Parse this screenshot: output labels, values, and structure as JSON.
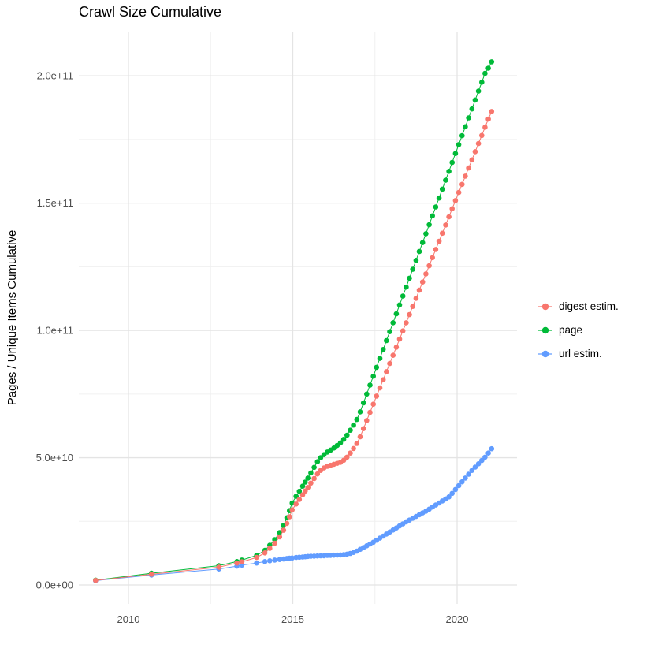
{
  "title": "Crawl Size Cumulative",
  "y_axis_label": "Pages / Unique Items Cumulative",
  "x_ticks": [
    {
      "value": 2010,
      "label": "2010"
    },
    {
      "value": 2015,
      "label": "2015"
    },
    {
      "value": 2020,
      "label": "2020"
    }
  ],
  "y_ticks": [
    {
      "value_e9": 0,
      "label": "0.0e+00"
    },
    {
      "value_e9": 50,
      "label": "5.0e+10"
    },
    {
      "value_e9": 100,
      "label": "1.0e+11"
    },
    {
      "value_e9": 150,
      "label": "1.5e+11"
    },
    {
      "value_e9": 200,
      "label": "2.0e+11"
    }
  ],
  "legend": [
    {
      "name": "digest estim.",
      "color": "#F8766D"
    },
    {
      "name": "page",
      "color": "#00BA38"
    },
    {
      "name": "url estim.",
      "color": "#619CFF"
    }
  ],
  "grid": {
    "major_color": "#e4e4e4",
    "minor_color": "#f0f0f0",
    "background": "#ffffff"
  },
  "chart_data": {
    "type": "scatter",
    "title": "Crawl Size Cumulative",
    "xlabel": "",
    "ylabel": "Pages / Unique Items Cumulative",
    "legend_position": "right",
    "grid": "on",
    "x_range": [
      2008.5,
      2021.8
    ],
    "y_range": [
      0,
      217000000000.0
    ],
    "units_note": "y values of points are in units of 1e9 (billions of pages/items), x values are decimal years",
    "series": [
      {
        "name": "digest estim.",
        "color": "#F8766D",
        "points": [
          [
            2009.0,
            1.8
          ],
          [
            2010.7,
            4.2
          ],
          [
            2012.75,
            7.0
          ],
          [
            2013.3,
            8.6
          ],
          [
            2013.45,
            9.1
          ],
          [
            2013.9,
            10.8
          ],
          [
            2014.15,
            12.6
          ],
          [
            2014.3,
            14.4
          ],
          [
            2014.45,
            16.4
          ],
          [
            2014.6,
            18.9
          ],
          [
            2014.72,
            21.5
          ],
          [
            2014.82,
            24.2
          ],
          [
            2014.9,
            26.8
          ],
          [
            2014.98,
            29.5
          ],
          [
            2015.1,
            31.8
          ],
          [
            2015.2,
            33.6
          ],
          [
            2015.3,
            35.4
          ],
          [
            2015.38,
            36.9
          ],
          [
            2015.46,
            38.3
          ],
          [
            2015.55,
            40.0
          ],
          [
            2015.65,
            41.8
          ],
          [
            2015.75,
            43.6
          ],
          [
            2015.85,
            45.0
          ],
          [
            2015.95,
            46.0
          ],
          [
            2016.05,
            46.6
          ],
          [
            2016.15,
            47.0
          ],
          [
            2016.25,
            47.4
          ],
          [
            2016.35,
            47.8
          ],
          [
            2016.45,
            48.2
          ],
          [
            2016.55,
            49.0
          ],
          [
            2016.65,
            50.2
          ],
          [
            2016.75,
            51.8
          ],
          [
            2016.85,
            53.6
          ],
          [
            2016.95,
            55.6
          ],
          [
            2017.05,
            58.2
          ],
          [
            2017.15,
            61.4
          ],
          [
            2017.25,
            64.6
          ],
          [
            2017.35,
            67.8
          ],
          [
            2017.45,
            71.0
          ],
          [
            2017.55,
            74.2
          ],
          [
            2017.65,
            77.4
          ],
          [
            2017.75,
            80.6
          ],
          [
            2017.85,
            83.8
          ],
          [
            2017.95,
            87.0
          ],
          [
            2018.05,
            90.2
          ],
          [
            2018.15,
            93.4
          ],
          [
            2018.25,
            96.6
          ],
          [
            2018.35,
            99.8
          ],
          [
            2018.45,
            103.0
          ],
          [
            2018.55,
            106.2
          ],
          [
            2018.65,
            109.4
          ],
          [
            2018.75,
            112.6
          ],
          [
            2018.85,
            115.8
          ],
          [
            2018.95,
            119.0
          ],
          [
            2019.05,
            122.2
          ],
          [
            2019.15,
            125.4
          ],
          [
            2019.25,
            128.6
          ],
          [
            2019.35,
            131.8
          ],
          [
            2019.45,
            135.0
          ],
          [
            2019.55,
            138.2
          ],
          [
            2019.65,
            141.4
          ],
          [
            2019.75,
            144.6
          ],
          [
            2019.85,
            147.8
          ],
          [
            2019.95,
            151.0
          ],
          [
            2020.05,
            154.2
          ],
          [
            2020.15,
            157.4
          ],
          [
            2020.25,
            160.6
          ],
          [
            2020.35,
            163.8
          ],
          [
            2020.45,
            167.0
          ],
          [
            2020.55,
            170.2
          ],
          [
            2020.65,
            173.4
          ],
          [
            2020.75,
            176.6
          ],
          [
            2020.85,
            179.8
          ],
          [
            2020.95,
            183.0
          ],
          [
            2021.05,
            186.0
          ]
        ]
      },
      {
        "name": "page",
        "color": "#00BA38",
        "points": [
          [
            2009.0,
            1.9
          ],
          [
            2010.7,
            4.6
          ],
          [
            2012.75,
            7.6
          ],
          [
            2013.3,
            9.2
          ],
          [
            2013.45,
            9.8
          ],
          [
            2013.9,
            11.6
          ],
          [
            2014.15,
            13.6
          ],
          [
            2014.3,
            15.6
          ],
          [
            2014.45,
            17.8
          ],
          [
            2014.6,
            20.6
          ],
          [
            2014.72,
            23.4
          ],
          [
            2014.82,
            26.4
          ],
          [
            2014.9,
            29.2
          ],
          [
            2014.98,
            32.2
          ],
          [
            2015.1,
            34.8
          ],
          [
            2015.2,
            36.8
          ],
          [
            2015.3,
            38.8
          ],
          [
            2015.38,
            40.4
          ],
          [
            2015.46,
            42.0
          ],
          [
            2015.55,
            44.0
          ],
          [
            2015.65,
            46.2
          ],
          [
            2015.75,
            48.4
          ],
          [
            2015.85,
            50.0
          ],
          [
            2015.95,
            51.2
          ],
          [
            2016.05,
            52.2
          ],
          [
            2016.15,
            53.0
          ],
          [
            2016.25,
            53.8
          ],
          [
            2016.35,
            54.8
          ],
          [
            2016.45,
            55.8
          ],
          [
            2016.55,
            57.2
          ],
          [
            2016.65,
            58.8
          ],
          [
            2016.75,
            60.8
          ],
          [
            2016.85,
            62.8
          ],
          [
            2016.95,
            65.0
          ],
          [
            2017.05,
            68.0
          ],
          [
            2017.15,
            71.5
          ],
          [
            2017.25,
            75.0
          ],
          [
            2017.35,
            78.5
          ],
          [
            2017.45,
            82.0
          ],
          [
            2017.55,
            85.5
          ],
          [
            2017.65,
            89.0
          ],
          [
            2017.75,
            92.5
          ],
          [
            2017.85,
            96.0
          ],
          [
            2017.95,
            99.5
          ],
          [
            2018.05,
            103.0
          ],
          [
            2018.15,
            106.5
          ],
          [
            2018.25,
            110.0
          ],
          [
            2018.35,
            113.5
          ],
          [
            2018.45,
            117.0
          ],
          [
            2018.55,
            120.5
          ],
          [
            2018.65,
            124.0
          ],
          [
            2018.75,
            127.5
          ],
          [
            2018.85,
            131.0
          ],
          [
            2018.95,
            134.5
          ],
          [
            2019.05,
            138.0
          ],
          [
            2019.15,
            141.5
          ],
          [
            2019.25,
            145.0
          ],
          [
            2019.35,
            148.5
          ],
          [
            2019.45,
            152.0
          ],
          [
            2019.55,
            155.5
          ],
          [
            2019.65,
            159.0
          ],
          [
            2019.75,
            162.5
          ],
          [
            2019.85,
            166.0
          ],
          [
            2019.95,
            169.5
          ],
          [
            2020.05,
            173.0
          ],
          [
            2020.15,
            176.5
          ],
          [
            2020.25,
            180.0
          ],
          [
            2020.35,
            183.5
          ],
          [
            2020.45,
            187.0
          ],
          [
            2020.55,
            190.5
          ],
          [
            2020.65,
            194.0
          ],
          [
            2020.75,
            197.5
          ],
          [
            2020.85,
            201.0
          ],
          [
            2020.95,
            203.0
          ],
          [
            2021.05,
            205.5
          ]
        ]
      },
      {
        "name": "url estim.",
        "color": "#619CFF",
        "points": [
          [
            2009.0,
            1.7
          ],
          [
            2010.7,
            3.9
          ],
          [
            2012.75,
            6.3
          ],
          [
            2013.3,
            7.4
          ],
          [
            2013.45,
            7.8
          ],
          [
            2013.9,
            8.6
          ],
          [
            2014.15,
            9.2
          ],
          [
            2014.3,
            9.5
          ],
          [
            2014.45,
            9.8
          ],
          [
            2014.6,
            10.0
          ],
          [
            2014.72,
            10.2
          ],
          [
            2014.82,
            10.4
          ],
          [
            2014.9,
            10.5
          ],
          [
            2014.98,
            10.6
          ],
          [
            2015.1,
            10.8
          ],
          [
            2015.2,
            10.9
          ],
          [
            2015.3,
            11.0
          ],
          [
            2015.38,
            11.1
          ],
          [
            2015.46,
            11.2
          ],
          [
            2015.55,
            11.3
          ],
          [
            2015.65,
            11.35
          ],
          [
            2015.75,
            11.4
          ],
          [
            2015.85,
            11.45
          ],
          [
            2015.95,
            11.5
          ],
          [
            2016.05,
            11.6
          ],
          [
            2016.15,
            11.65
          ],
          [
            2016.25,
            11.7
          ],
          [
            2016.35,
            11.75
          ],
          [
            2016.45,
            11.8
          ],
          [
            2016.55,
            11.9
          ],
          [
            2016.65,
            12.1
          ],
          [
            2016.75,
            12.4
          ],
          [
            2016.85,
            12.8
          ],
          [
            2016.95,
            13.3
          ],
          [
            2017.05,
            14.0
          ],
          [
            2017.15,
            14.7
          ],
          [
            2017.25,
            15.4
          ],
          [
            2017.35,
            16.1
          ],
          [
            2017.45,
            16.8
          ],
          [
            2017.55,
            17.6
          ],
          [
            2017.65,
            18.4
          ],
          [
            2017.75,
            19.2
          ],
          [
            2017.85,
            20.0
          ],
          [
            2017.95,
            20.8
          ],
          [
            2018.05,
            21.6
          ],
          [
            2018.15,
            22.4
          ],
          [
            2018.25,
            23.2
          ],
          [
            2018.35,
            24.0
          ],
          [
            2018.45,
            24.8
          ],
          [
            2018.55,
            25.5
          ],
          [
            2018.65,
            26.2
          ],
          [
            2018.75,
            26.9
          ],
          [
            2018.85,
            27.6
          ],
          [
            2018.95,
            28.3
          ],
          [
            2019.05,
            29.0
          ],
          [
            2019.15,
            29.8
          ],
          [
            2019.25,
            30.6
          ],
          [
            2019.35,
            31.4
          ],
          [
            2019.45,
            32.2
          ],
          [
            2019.55,
            33.0
          ],
          [
            2019.65,
            33.8
          ],
          [
            2019.75,
            34.6
          ],
          [
            2019.85,
            36.0
          ],
          [
            2019.95,
            37.5
          ],
          [
            2020.05,
            39.0
          ],
          [
            2020.15,
            40.5
          ],
          [
            2020.25,
            42.0
          ],
          [
            2020.35,
            43.5
          ],
          [
            2020.45,
            45.0
          ],
          [
            2020.55,
            46.3
          ],
          [
            2020.65,
            47.6
          ],
          [
            2020.75,
            48.9
          ],
          [
            2020.85,
            50.2
          ],
          [
            2020.95,
            51.8
          ],
          [
            2021.05,
            53.5
          ]
        ]
      }
    ]
  }
}
